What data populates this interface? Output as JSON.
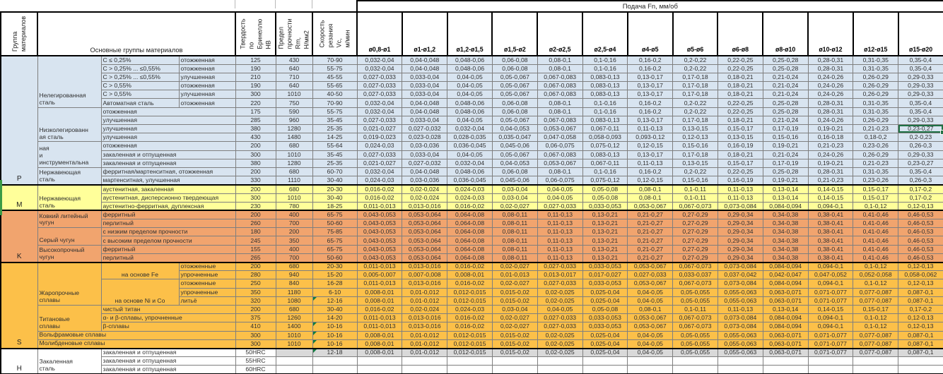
{
  "header": {
    "group_col": "Группа\nматериалов",
    "materials_col": "Основные группы материалов",
    "hardness_col": "Твердость по\nБринеллю HB",
    "strength_col": "Предел\nпрочности Rm,\nН/мм2",
    "speed_col": "Скорость\nрезания Vc,\nм/мин",
    "feed_band": "Подача Fn, мм/об",
    "feed_ranges": [
      "ø0,8-ø1",
      "ø1-ø1,2",
      "ø1,2-ø1,5",
      "ø1,5-ø2",
      "ø2-ø2,5",
      "ø2,5-ø4",
      "ø4-ø5",
      "ø5-ø6",
      "ø6-ø8",
      "ø8-ø10",
      "ø10-ø12",
      "ø12-ø15",
      "ø15-ø20"
    ]
  },
  "colors": {
    "group_p": "#D8E4F0",
    "group_m": "#FFFF9A",
    "group_k": "#F1A46E",
    "group_s": "#FCC049",
    "group_h": "#FFFFFF",
    "grey": "#D9D9D9",
    "selection_green": "#1F7145",
    "flag_green": "#107C41",
    "grid": "#7f7f7f",
    "border": "#000000"
  },
  "feed_sets": {
    "A": [
      "0,032-0,04",
      "0,04-0,048",
      "0,048-0,06",
      "0,06-0,08",
      "0,08-0,1",
      "0,1-0,16",
      "0,16-0,2",
      "0,2-0,22",
      "0,22-0,25",
      "0,25-0,28",
      "0,28-0,31",
      "0,31-0,35",
      "0,35-0,4"
    ],
    "B": [
      "0,027-0,033",
      "0,033-0,04",
      "0,04-0,05",
      "0,05-0,067",
      "0,067-0,083",
      "0,083-0,13",
      "0,13-0,17",
      "0,17-0,18",
      "0,18-0,21",
      "0,21-0,24",
      "0,24-0,26",
      "0,26-0,29",
      "0,29-0,33"
    ],
    "C": [
      "0,021-0,027",
      "0,027-0,032",
      "0,032-0,04",
      "0,04-0,053",
      "0,053-0,067",
      "0,067-0,11",
      "0,11-0,13",
      "0,13-0,15",
      "0,15-0,17",
      "0,17-0,19",
      "0,19-0,21",
      "0,21-0,23",
      "0,23-0,27"
    ],
    "R10": [
      "0,019-0,023",
      "0,023-0,028",
      "0,028-0,035",
      "0,035-0,047",
      "0,047-0,058",
      "0,058-0,093",
      "0,093-0,12",
      "0,12-0,13",
      "0,13-0,15",
      "0,15-0,16",
      "0,16-0,18",
      "0,18-0,2",
      "0,2-0,23"
    ],
    "D": [
      "0,024-0,03",
      "0,03-0,036",
      "0,036-0,045",
      "0,045-0,06",
      "0,06-0,075",
      "0,075-0,12",
      "0,12-0,15",
      "0,15-0,16",
      "0,16-0,19",
      "0,19-0,21",
      "0,21-0,23",
      "0,23-0,26",
      "0,26-0,3"
    ],
    "E": [
      "0,016-0,02",
      "0,02-0,024",
      "0,024-0,03",
      "0,03-0,04",
      "0,04-0,05",
      "0,05-0,08",
      "0,08-0,1",
      "0,1-0,11",
      "0,11-0,13",
      "0,13-0,14",
      "0,14-0,15",
      "0,15-0,17",
      "0,17-0,2"
    ],
    "F": [
      "0,011-0,013",
      "0,013-0,016",
      "0,016-0,02",
      "0,02-0,027",
      "0,027-0,033",
      "0,033-0,053",
      "0,053-0,067",
      "0,067-0,073",
      "0,073-0,084",
      "0,084-0,094",
      "0,094-0,1",
      "0,1-0,12",
      "0,12-0,13"
    ],
    "K": [
      "0,043-0,053",
      "0,053-0,064",
      "0,064-0,08",
      "0,08-0,11",
      "0,11-0,13",
      "0,13-0,21",
      "0,21-0,27",
      "0,27-0,29",
      "0,29-0,34",
      "0,34-0,38",
      "0,38-0,41",
      "0,41-0,46",
      "0,46-0,53"
    ],
    "G": [
      "0,008-0,01",
      "0,01-0,012",
      "0,012-0,015",
      "0,015-0,02",
      "0,02-0,025",
      "0,025-0,04",
      "0,04-0,05",
      "0,05-0,055",
      "0,055-0,063",
      "0,063-0,071",
      "0,071-0,077",
      "0,077-0,087",
      "0,087-0,1"
    ],
    "R26": [
      "0,005-0,007",
      "0,007-0,008",
      "0,008-0,01",
      "0,01-0,013",
      "0,013-0,017",
      "0,017-0,027",
      "0,027-0,033",
      "0,033-0,037",
      "0,037-0,042",
      "0,042-0,047",
      "0,047-0,052",
      "0,052-0,058",
      "0,058-0,062"
    ],
    "EMPTY": [
      "",
      "",
      "",
      "",
      "",
      "",
      "",
      "",
      "",
      "",
      "",
      "",
      ""
    ]
  },
  "groups": [
    {
      "code": "P",
      "color": "#D8E4F0",
      "rows": [
        {
          "b": {
            "t": "Нелегированная\nсталь",
            "rs": 6
          },
          "c": {
            "t": "C ≤ 0,25%"
          },
          "d": "отожженная",
          "hb": "125",
          "rm": "430",
          "vc": "70-90",
          "feeds": "A"
        },
        {
          "c": {
            "t": "C > 0,25% ... ≤0,55%"
          },
          "d": "отожженная",
          "hb": "190",
          "rm": "640",
          "vc": "55-75",
          "feeds": "A"
        },
        {
          "c": {
            "t": "C > 0,25% ... ≤0,55%"
          },
          "d": "улучшенная",
          "hb": "210",
          "rm": "710",
          "vc": "45-55",
          "feeds": "B"
        },
        {
          "c": {
            "t": "C > 0,55%"
          },
          "d": "отожженная",
          "hb": "190",
          "rm": "640",
          "vc": "55-65",
          "feeds": "B"
        },
        {
          "c": {
            "t": "C > 0,55%"
          },
          "d": "улучшенная",
          "hb": "300",
          "rm": "1010",
          "vc": "40-50",
          "feeds": "B"
        },
        {
          "c": {
            "t": "Автоматная сталь"
          },
          "d": "отожженная",
          "hb": "220",
          "rm": "750",
          "vc": "70-90",
          "feeds": "A"
        },
        {
          "b": {
            "t": "Низколегированн\nая сталь",
            "rs": 4
          },
          "c": {
            "t": "отожженная",
            "cs": 2
          },
          "hb": "175",
          "rm": "590",
          "vc": "55-75",
          "feeds": "A"
        },
        {
          "c": {
            "t": "улучшенная",
            "cs": 2
          },
          "hb": "285",
          "rm": "960",
          "vc": "35-45",
          "feeds": "B"
        },
        {
          "c": {
            "t": "улучшенная",
            "cs": 2
          },
          "hb": "380",
          "rm": "1280",
          "vc": "25-35",
          "feeds": "C",
          "sel": 12
        },
        {
          "c": {
            "t": "улучшенная",
            "cs": 2
          },
          "hb": "430",
          "rm": "1480",
          "vc": "14-25",
          "feeds": "R10"
        },
        {
          "b": {
            "t": "ная\nи\nинструментальна",
            "rs": 3
          },
          "c": {
            "t": "отожженная",
            "cs": 2
          },
          "hb": "200",
          "rm": "680",
          "vc": "55-64",
          "feeds": "D"
        },
        {
          "c": {
            "t": "закаленная и отпущенная",
            "cs": 2
          },
          "hb": "300",
          "rm": "1010",
          "vc": "35-45",
          "feeds": "B"
        },
        {
          "c": {
            "t": "закаленная и отпущенная",
            "cs": 2
          },
          "hb": "380",
          "rm": "1280",
          "vc": "25-35",
          "feeds": "C"
        },
        {
          "b": {
            "t": "Нержавеющая\nсталь",
            "rs": 2
          },
          "c": {
            "t": "ферритная/мартенситная, отожженная",
            "cs": 2
          },
          "hb": "200",
          "rm": "680",
          "vc": "60-70",
          "feeds": "A"
        },
        {
          "c": {
            "t": "мартенситная, улучшенная",
            "cs": 2
          },
          "hb": "330",
          "rm": "1110",
          "vc": "30-40",
          "feeds": "D"
        }
      ]
    },
    {
      "code": "M",
      "color": "#FFFF9A",
      "rows": [
        {
          "b": {
            "t": "Нержавеющая\nсталь",
            "rs": 3
          },
          "c": {
            "t": "аустенитная, закаленная",
            "cs": 2
          },
          "hb": "200",
          "rm": "680",
          "vc": "20-30",
          "feeds": "E"
        },
        {
          "c": {
            "t": "аустенитная, дисперсионно твердеющая",
            "cs": 2
          },
          "hb": "300",
          "rm": "1010",
          "vc": "30-40",
          "feeds": "E"
        },
        {
          "c": {
            "t": "аустенитно-ферритная, дуплексная",
            "cs": 2
          },
          "hb": "230",
          "rm": "780",
          "vc": "18-25",
          "feeds": "F"
        }
      ]
    },
    {
      "code": "K",
      "color": "#F1A46E",
      "rows": [
        {
          "b": {
            "t": "Ковкий литейный\nчугун",
            "rs": 2
          },
          "c": {
            "t": "ферритный",
            "cs": 2
          },
          "hb": "200",
          "rm": "400",
          "vc": "65-75",
          "feeds": "K"
        },
        {
          "c": {
            "t": "перлитный",
            "cs": 2
          },
          "hb": "260",
          "rm": "700",
          "vc": "50-60",
          "feeds": "K"
        },
        {
          "b": {
            "t": "Серый чугун",
            "rs": 2
          },
          "c": {
            "t": "с низким пределом прочности",
            "cs": 2
          },
          "hb": "180",
          "rm": "200",
          "vc": "75-85",
          "feeds": "K"
        },
        {
          "c": {
            "t": "с высоким пределом прочности",
            "cs": 2
          },
          "hb": "245",
          "rm": "350",
          "vc": "65-75",
          "feeds": "K"
        },
        {
          "b": {
            "t": "Высокопрочный\nчугун",
            "rs": 2
          },
          "c": {
            "t": "ферритный",
            "cs": 2
          },
          "hb": "155",
          "rm": "400",
          "vc": "65-75",
          "feeds": "K"
        },
        {
          "c": {
            "t": "перлитный",
            "cs": 2
          },
          "hb": "265",
          "rm": "700",
          "vc": "50-60",
          "feeds": "K"
        }
      ]
    },
    {
      "code": "S",
      "color": "#FCC049",
      "rows": [
        {
          "b": {
            "t": "Жаропрочные\nсплавы",
            "rs": 5
          },
          "c": {
            "t": "на основе Fe",
            "rs": 2,
            "ctr": true
          },
          "d": "отожженные",
          "hb": "200",
          "rm": "680",
          "vc": "20-30",
          "feeds": "F"
        },
        {
          "d": "упрочненные",
          "hb": "280",
          "rm": "940",
          "vc": "15-20",
          "feeds": "R26"
        },
        {
          "c": {
            "t": "на основе Ni и Co",
            "rs": 3,
            "ctr": true
          },
          "d": "отожженные",
          "hb": "250",
          "rm": "840",
          "vc": "16-28",
          "feeds": "F"
        },
        {
          "d": "упрочненные",
          "hb": "350",
          "rm": "1180",
          "vc": "6-10",
          "feeds": "G"
        },
        {
          "d": "литьё",
          "hb": "320",
          "rm": "1080",
          "vc": "12-16",
          "feeds": "G",
          "flag": true
        },
        {
          "b": {
            "t": "Титановые\nсплавы",
            "rs": 3
          },
          "c": {
            "t": "чистый титан",
            "cs": 2
          },
          "hb": "200",
          "rm": "680",
          "vc": "30-40",
          "feeds": "E"
        },
        {
          "c": {
            "t": "α- и β-сплавы, упрочненные",
            "cs": 2
          },
          "hb": "375",
          "rm": "1260",
          "vc": "14-20",
          "feeds": "F"
        },
        {
          "c": {
            "t": "β-сплавы",
            "cs": 2
          },
          "hb": "410",
          "rm": "1400",
          "vc": "10-16",
          "feeds": "F",
          "flag": true
        },
        {
          "b": {
            "t": "Вольфрамовые сплавы",
            "cs": 3
          },
          "hb": "300",
          "rm": "1010",
          "vc": "10-16",
          "feeds": "G",
          "flag": true
        },
        {
          "b": {
            "t": "Молибденовые сплавы",
            "cs": 3
          },
          "hb": "300",
          "rm": "1010",
          "vc": "10-16",
          "feeds": "G",
          "flag": true
        }
      ]
    },
    {
      "code": "H",
      "color": "#FFFFFF",
      "rows": [
        {
          "b": {
            "t": "Закаленная\nсталь",
            "rs": 3
          },
          "c": {
            "t": "закаленная и отпущенная",
            "cs": 2
          },
          "hb": "50HRC",
          "rm": "",
          "vc": "12-18",
          "feeds": "G",
          "flag": true,
          "grey": true
        },
        {
          "c": {
            "t": "закаленная и отпущенная",
            "cs": 2
          },
          "hb": "55HRC",
          "rm": "",
          "vc": "",
          "feeds": "EMPTY"
        },
        {
          "c": {
            "t": "закаленная и отпущенная",
            "cs": 2
          },
          "hb": "60HRC",
          "rm": "",
          "vc": "",
          "feeds": "EMPTY"
        }
      ]
    }
  ]
}
